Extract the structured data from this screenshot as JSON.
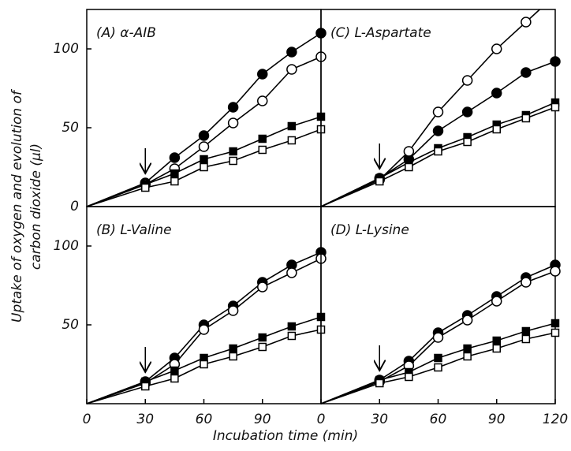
{
  "figure": {
    "xlabel": "Incubation time (min)",
    "ylabel": [
      "Uptake of oxygen and evolution of",
      "carbon dioxide (μl)"
    ]
  },
  "chart_data": [
    {
      "type": "line",
      "title": "(A) α-AIB",
      "x": [
        30,
        45,
        60,
        75,
        90,
        105,
        120
      ],
      "xlim": [
        0,
        120
      ],
      "ylim": [
        0,
        125
      ],
      "xticks": [],
      "yticks": [
        0,
        50,
        100
      ],
      "arrow_x": 30,
      "color": "#000000",
      "series": [
        {
          "marker": "filled-circle",
          "values": [
            15,
            31,
            45,
            63,
            84,
            98,
            110
          ]
        },
        {
          "marker": "open-circle",
          "values": [
            14,
            24,
            38,
            53,
            67,
            87,
            95
          ]
        },
        {
          "marker": "filled-square",
          "values": [
            14,
            21,
            30,
            35,
            43,
            51,
            57
          ]
        },
        {
          "marker": "open-square",
          "values": [
            12,
            16,
            25,
            29,
            36,
            42,
            49
          ]
        }
      ]
    },
    {
      "type": "line",
      "title": "(C) L-Aspartate",
      "x": [
        30,
        45,
        60,
        75,
        90,
        105,
        120
      ],
      "xlim": [
        0,
        120
      ],
      "ylim": [
        0,
        125
      ],
      "xticks": [],
      "yticks": [],
      "arrow_x": 30,
      "color": "#000000",
      "series": [
        {
          "marker": "filled-circle",
          "values": [
            18,
            30,
            48,
            60,
            72,
            85,
            92
          ]
        },
        {
          "marker": "open-circle",
          "values": [
            17,
            35,
            60,
            80,
            100,
            117,
            null
          ]
        },
        {
          "marker": "filled-square",
          "values": [
            18,
            28,
            37,
            44,
            52,
            58,
            66
          ]
        },
        {
          "marker": "open-square",
          "values": [
            16,
            25,
            35,
            41,
            49,
            56,
            63
          ]
        }
      ]
    },
    {
      "type": "line",
      "title": "(B) L-Valine",
      "x": [
        30,
        45,
        60,
        75,
        90,
        105,
        120
      ],
      "xlim": [
        0,
        120
      ],
      "ylim": [
        0,
        125
      ],
      "xticks": [
        0,
        30,
        60,
        90
      ],
      "yticks": [
        50,
        100
      ],
      "arrow_x": 30,
      "color": "#000000",
      "series": [
        {
          "marker": "filled-circle",
          "values": [
            14,
            29,
            50,
            62,
            77,
            88,
            96
          ]
        },
        {
          "marker": "open-circle",
          "values": [
            13,
            25,
            47,
            59,
            74,
            83,
            92
          ]
        },
        {
          "marker": "filled-square",
          "values": [
            14,
            21,
            29,
            35,
            42,
            49,
            55
          ]
        },
        {
          "marker": "open-square",
          "values": [
            11,
            16,
            25,
            30,
            36,
            43,
            47
          ]
        }
      ]
    },
    {
      "type": "line",
      "title": "(D) L-Lysine",
      "x": [
        30,
        45,
        60,
        75,
        90,
        105,
        120
      ],
      "xlim": [
        0,
        120
      ],
      "ylim": [
        0,
        125
      ],
      "xticks": [
        0,
        30,
        60,
        90,
        120
      ],
      "yticks": [],
      "arrow_x": 30,
      "color": "#000000",
      "series": [
        {
          "marker": "filled-circle",
          "values": [
            15,
            27,
            45,
            56,
            68,
            80,
            88
          ]
        },
        {
          "marker": "open-circle",
          "values": [
            14,
            24,
            42,
            53,
            65,
            77,
            84
          ]
        },
        {
          "marker": "filled-square",
          "values": [
            15,
            20,
            29,
            35,
            40,
            46,
            51
          ]
        },
        {
          "marker": "open-square",
          "values": [
            13,
            17,
            23,
            30,
            35,
            41,
            45
          ]
        }
      ]
    }
  ]
}
